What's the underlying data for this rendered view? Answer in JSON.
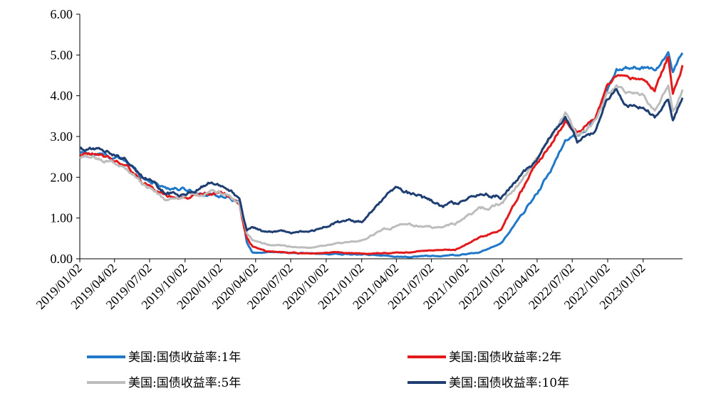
{
  "chart_data": {
    "type": "line",
    "title": "",
    "xlabel": "",
    "ylabel": "",
    "ylim": [
      0,
      6
    ],
    "y_ticks": [
      "0.00",
      "1.00",
      "2.00",
      "3.00",
      "4.00",
      "5.00",
      "6.00"
    ],
    "x_ticks": [
      "2019/01/02",
      "2019/04/02",
      "2019/07/02",
      "2019/10/02",
      "2020/01/02",
      "2020/04/02",
      "2020/07/02",
      "2020/10/02",
      "2021/01/02",
      "2021/04/02",
      "2021/07/02",
      "2021/10/02",
      "2022/01/02",
      "2022/04/02",
      "2022/07/02",
      "2022/10/02",
      "2023/01/02"
    ],
    "x_range": [
      "2019/01/02",
      "2023/04/14"
    ],
    "grid": false,
    "legend_position": "bottom",
    "series": [
      {
        "name": "美国:国债收益率:1年",
        "color": "#1f78c8",
        "points": [
          [
            "2019/01/02",
            2.6
          ],
          [
            "2019/03/01",
            2.55
          ],
          [
            "2019/05/01",
            2.4
          ],
          [
            "2019/06/15",
            2.0
          ],
          [
            "2019/08/15",
            1.75
          ],
          [
            "2019/10/02",
            1.7
          ],
          [
            "2019/12/01",
            1.58
          ],
          [
            "2020/01/15",
            1.55
          ],
          [
            "2020/02/20",
            1.45
          ],
          [
            "2020/03/10",
            0.4
          ],
          [
            "2020/03/25",
            0.15
          ],
          [
            "2020/05/01",
            0.16
          ],
          [
            "2020/07/01",
            0.15
          ],
          [
            "2020/09/01",
            0.12
          ],
          [
            "2020/11/01",
            0.12
          ],
          [
            "2021/01/02",
            0.1
          ],
          [
            "2021/03/01",
            0.08
          ],
          [
            "2021/05/01",
            0.05
          ],
          [
            "2021/07/01",
            0.07
          ],
          [
            "2021/09/01",
            0.08
          ],
          [
            "2021/11/01",
            0.15
          ],
          [
            "2021/12/31",
            0.38
          ],
          [
            "2022/02/15",
            1.0
          ],
          [
            "2022/03/31",
            1.6
          ],
          [
            "2022/05/01",
            2.05
          ],
          [
            "2022/06/14",
            2.9
          ],
          [
            "2022/07/15",
            3.0
          ],
          [
            "2022/08/31",
            3.4
          ],
          [
            "2022/09/30",
            4.1
          ],
          [
            "2022/10/25",
            4.6
          ],
          [
            "2022/11/15",
            4.7
          ],
          [
            "2023/01/02",
            4.7
          ],
          [
            "2023/02/01",
            4.65
          ],
          [
            "2023/03/08",
            5.0
          ],
          [
            "2023/03/20",
            4.6
          ],
          [
            "2023/04/14",
            5.05
          ]
        ]
      },
      {
        "name": "美国:国债收益率:2年",
        "color": "#e31a1c",
        "points": [
          [
            "2019/01/02",
            2.55
          ],
          [
            "2019/03/01",
            2.52
          ],
          [
            "2019/05/01",
            2.3
          ],
          [
            "2019/06/15",
            1.85
          ],
          [
            "2019/08/15",
            1.55
          ],
          [
            "2019/10/02",
            1.5
          ],
          [
            "2019/12/01",
            1.6
          ],
          [
            "2020/01/15",
            1.58
          ],
          [
            "2020/02/20",
            1.35
          ],
          [
            "2020/03/10",
            0.5
          ],
          [
            "2020/03/25",
            0.3
          ],
          [
            "2020/05/01",
            0.18
          ],
          [
            "2020/07/01",
            0.15
          ],
          [
            "2020/09/01",
            0.13
          ],
          [
            "2020/11/01",
            0.16
          ],
          [
            "2021/01/02",
            0.12
          ],
          [
            "2021/03/01",
            0.14
          ],
          [
            "2021/05/01",
            0.15
          ],
          [
            "2021/07/01",
            0.22
          ],
          [
            "2021/09/01",
            0.21
          ],
          [
            "2021/11/01",
            0.5
          ],
          [
            "2021/12/31",
            0.73
          ],
          [
            "2022/02/15",
            1.55
          ],
          [
            "2022/03/31",
            2.3
          ],
          [
            "2022/05/01",
            2.7
          ],
          [
            "2022/06/14",
            3.4
          ],
          [
            "2022/07/15",
            3.1
          ],
          [
            "2022/08/31",
            3.45
          ],
          [
            "2022/09/30",
            4.2
          ],
          [
            "2022/10/25",
            4.45
          ],
          [
            "2022/11/15",
            4.4
          ],
          [
            "2023/01/02",
            4.4
          ],
          [
            "2023/02/01",
            4.15
          ],
          [
            "2023/03/08",
            4.95
          ],
          [
            "2023/03/20",
            4.0
          ],
          [
            "2023/04/14",
            4.75
          ]
        ]
      },
      {
        "name": "美国:国债收益率:5年",
        "color": "#bdbdbd",
        "points": [
          [
            "2019/01/02",
            2.5
          ],
          [
            "2019/03/01",
            2.45
          ],
          [
            "2019/05/01",
            2.25
          ],
          [
            "2019/06/15",
            1.85
          ],
          [
            "2019/08/15",
            1.45
          ],
          [
            "2019/10/02",
            1.5
          ],
          [
            "2019/12/01",
            1.65
          ],
          [
            "2020/01/15",
            1.6
          ],
          [
            "2020/02/20",
            1.35
          ],
          [
            "2020/03/10",
            0.6
          ],
          [
            "2020/03/25",
            0.45
          ],
          [
            "2020/05/01",
            0.35
          ],
          [
            "2020/07/01",
            0.29
          ],
          [
            "2020/09/01",
            0.27
          ],
          [
            "2020/11/01",
            0.38
          ],
          [
            "2021/01/02",
            0.45
          ],
          [
            "2021/03/01",
            0.75
          ],
          [
            "2021/05/01",
            0.85
          ],
          [
            "2021/07/01",
            0.75
          ],
          [
            "2021/09/01",
            0.85
          ],
          [
            "2021/11/01",
            1.2
          ],
          [
            "2021/12/31",
            1.35
          ],
          [
            "2022/02/15",
            1.85
          ],
          [
            "2022/03/31",
            2.45
          ],
          [
            "2022/05/01",
            2.9
          ],
          [
            "2022/06/14",
            3.55
          ],
          [
            "2022/07/15",
            3.0
          ],
          [
            "2022/08/31",
            3.35
          ],
          [
            "2022/09/30",
            4.05
          ],
          [
            "2022/10/25",
            4.25
          ],
          [
            "2022/11/15",
            4.1
          ],
          [
            "2023/01/02",
            4.0
          ],
          [
            "2023/02/01",
            3.6
          ],
          [
            "2023/03/08",
            4.3
          ],
          [
            "2023/03/20",
            3.6
          ],
          [
            "2023/04/14",
            4.15
          ]
        ]
      },
      {
        "name": "美国:国债收益率:10年",
        "color": "#1f3f73",
        "points": [
          [
            "2019/01/02",
            2.7
          ],
          [
            "2019/03/01",
            2.7
          ],
          [
            "2019/05/01",
            2.45
          ],
          [
            "2019/06/15",
            2.05
          ],
          [
            "2019/08/15",
            1.6
          ],
          [
            "2019/10/02",
            1.6
          ],
          [
            "2019/12/01",
            1.85
          ],
          [
            "2020/01/15",
            1.8
          ],
          [
            "2020/02/20",
            1.5
          ],
          [
            "2020/03/10",
            0.7
          ],
          [
            "2020/03/25",
            0.8
          ],
          [
            "2020/05/01",
            0.65
          ],
          [
            "2020/07/01",
            0.65
          ],
          [
            "2020/09/01",
            0.7
          ],
          [
            "2020/11/01",
            0.9
          ],
          [
            "2021/01/02",
            0.95
          ],
          [
            "2021/03/01",
            1.5
          ],
          [
            "2021/03/31",
            1.72
          ],
          [
            "2021/05/01",
            1.62
          ],
          [
            "2021/07/01",
            1.4
          ],
          [
            "2021/08/01",
            1.25
          ],
          [
            "2021/09/01",
            1.35
          ],
          [
            "2021/10/25",
            1.62
          ],
          [
            "2021/12/31",
            1.52
          ],
          [
            "2022/02/15",
            2.0
          ],
          [
            "2022/03/31",
            2.4
          ],
          [
            "2022/05/01",
            2.95
          ],
          [
            "2022/06/14",
            3.4
          ],
          [
            "2022/07/15",
            2.85
          ],
          [
            "2022/08/31",
            3.1
          ],
          [
            "2022/09/30",
            3.9
          ],
          [
            "2022/10/25",
            4.2
          ],
          [
            "2022/11/15",
            3.8
          ],
          [
            "2023/01/02",
            3.75
          ],
          [
            "2023/02/01",
            3.5
          ],
          [
            "2023/03/08",
            3.95
          ],
          [
            "2023/03/20",
            3.45
          ],
          [
            "2023/04/14",
            3.95
          ]
        ]
      }
    ]
  }
}
